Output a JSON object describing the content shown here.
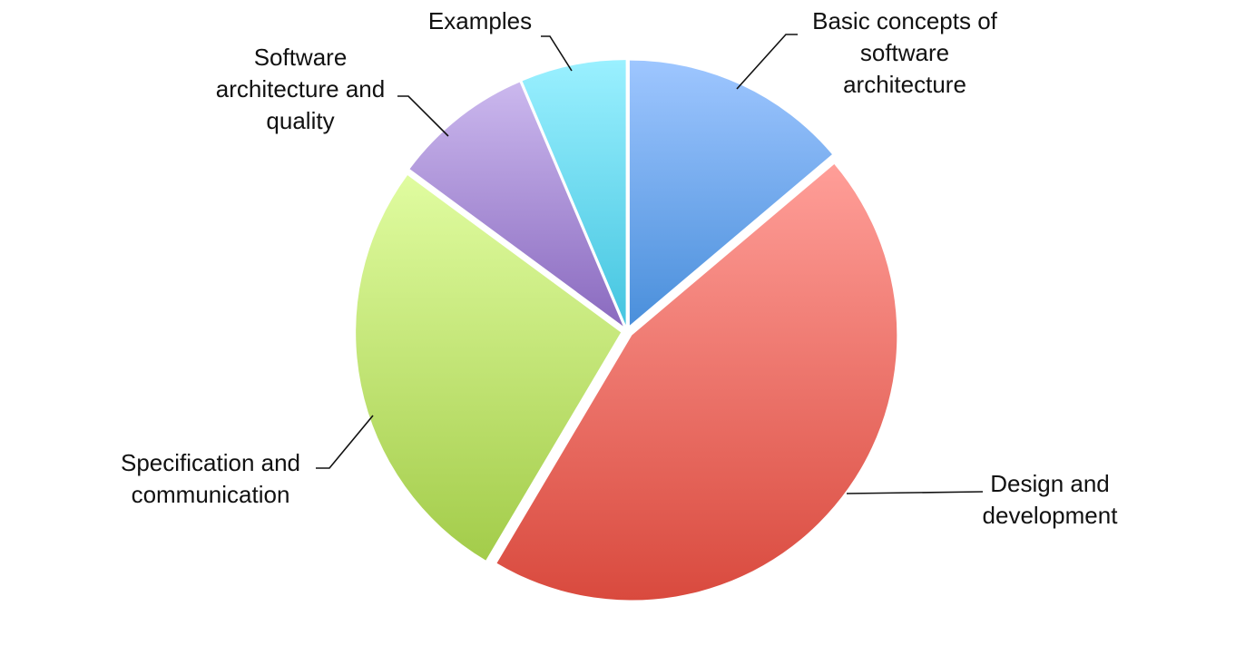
{
  "chart_data": {
    "type": "pie",
    "title": "",
    "categories": [
      "Basic concepts of software architecture",
      "Design and development",
      "Specification and communication",
      "Software architecture and quality",
      "Examples"
    ],
    "values": [
      13,
      42,
      25,
      8,
      6
    ],
    "colors": [
      {
        "top": "#9ec6ff",
        "bottom": "#4a8fdb"
      },
      {
        "top": "#ff9e98",
        "bottom": "#d94a3e"
      },
      {
        "top": "#e0fca0",
        "bottom": "#a3cc4a"
      },
      {
        "top": "#cbb8ee",
        "bottom": "#8a6abf"
      },
      {
        "top": "#9af0ff",
        "bottom": "#45c5e0"
      }
    ],
    "labels": [
      [
        "Basic concepts of",
        "software",
        "architecture"
      ],
      [
        "Design and",
        "development"
      ],
      [
        "Specification and",
        "communication"
      ],
      [
        "Software",
        "architecture and",
        "quality"
      ],
      [
        "Examples"
      ]
    ],
    "start_angle_deg": 0,
    "direction": "clockwise",
    "exploded": true,
    "legend": "none"
  }
}
